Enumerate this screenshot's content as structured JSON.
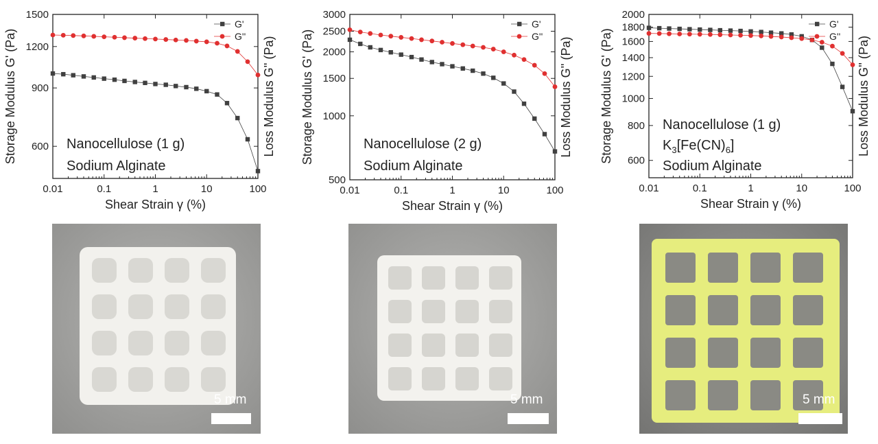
{
  "chart_data": [
    {
      "type": "scatter",
      "xlabel": "Shear Strain γ (%)",
      "ylabel_left": "Storage Modulus G' (Pa)",
      "ylabel_right": "Loss Modulus G'' (Pa)",
      "xscale": "log",
      "yscale": "log",
      "xlim": [
        0.01,
        100
      ],
      "ylim": [
        480,
        1500
      ],
      "xticks": [
        0.01,
        0.1,
        1,
        10,
        100
      ],
      "xtick_labels": [
        "0.01",
        "0.1",
        "1",
        "10",
        "100"
      ],
      "yticks": [
        600,
        900,
        1200,
        1500
      ],
      "ytick_labels": [
        "600",
        "900",
        "1200",
        "1500"
      ],
      "legend_position": "top-right",
      "annotation_lines": [
        "Nanocellulose (1 g)",
        "Sodium Alginate"
      ],
      "series": [
        {
          "name": "G'",
          "marker": "square",
          "color": "#404040",
          "x": [
            0.01,
            0.016,
            0.025,
            0.04,
            0.063,
            0.1,
            0.16,
            0.25,
            0.4,
            0.63,
            1,
            1.6,
            2.5,
            4,
            6.3,
            10,
            16,
            25,
            40,
            63,
            100
          ],
          "y": [
            995,
            990,
            983,
            975,
            968,
            960,
            953,
            945,
            938,
            932,
            925,
            920,
            912,
            905,
            895,
            880,
            860,
            810,
            730,
            630,
            505
          ]
        },
        {
          "name": "G''",
          "marker": "circle",
          "color": "#e03030",
          "x": [
            0.01,
            0.016,
            0.025,
            0.04,
            0.063,
            0.1,
            0.16,
            0.25,
            0.4,
            0.63,
            1,
            1.6,
            2.5,
            4,
            6.3,
            10,
            16,
            25,
            40,
            63,
            100
          ],
          "y": [
            1300,
            1298,
            1295,
            1292,
            1288,
            1284,
            1280,
            1276,
            1272,
            1268,
            1264,
            1260,
            1256,
            1252,
            1246,
            1240,
            1228,
            1205,
            1160,
            1080,
            985
          ]
        }
      ]
    },
    {
      "type": "scatter",
      "xlabel": "Shear Strain γ (%)",
      "ylabel_left": "Storage Modulus G' (Pa)",
      "ylabel_right": "Loss Modulus G'' (Pa)",
      "xscale": "log",
      "yscale": "log",
      "xlim": [
        0.01,
        100
      ],
      "ylim": [
        500,
        3000
      ],
      "xticks": [
        0.01,
        0.1,
        1,
        10,
        100
      ],
      "xtick_labels": [
        "0.01",
        "0.1",
        "1",
        "10",
        "100"
      ],
      "yticks": [
        500,
        1000,
        1500,
        2000,
        2500,
        3000
      ],
      "ytick_labels": [
        "500",
        "1000",
        "1500",
        "2000",
        "2500",
        "3000"
      ],
      "legend_position": "top-right",
      "annotation_lines": [
        "Nanocellulose (2 g)",
        "Sodium Alginate"
      ],
      "series": [
        {
          "name": "G'",
          "marker": "square",
          "color": "#404040",
          "x": [
            0.01,
            0.016,
            0.025,
            0.04,
            0.063,
            0.1,
            0.16,
            0.25,
            0.4,
            0.63,
            1,
            1.6,
            2.5,
            4,
            6.3,
            10,
            16,
            25,
            40,
            63,
            100
          ],
          "y": [
            2280,
            2180,
            2100,
            2040,
            1990,
            1940,
            1890,
            1840,
            1790,
            1750,
            1710,
            1670,
            1630,
            1580,
            1510,
            1420,
            1300,
            1140,
            970,
            820,
            680
          ]
        },
        {
          "name": "G''",
          "marker": "circle",
          "color": "#e03030",
          "x": [
            0.01,
            0.016,
            0.025,
            0.04,
            0.063,
            0.1,
            0.16,
            0.25,
            0.4,
            0.63,
            1,
            1.6,
            2.5,
            4,
            6.3,
            10,
            16,
            25,
            40,
            63,
            100
          ],
          "y": [
            2540,
            2480,
            2440,
            2400,
            2370,
            2340,
            2310,
            2280,
            2250,
            2220,
            2190,
            2160,
            2130,
            2100,
            2060,
            2000,
            1930,
            1840,
            1730,
            1580,
            1370
          ]
        }
      ]
    },
    {
      "type": "scatter",
      "xlabel": "Shear Strain γ (%)",
      "ylabel_left": "Storage Modulus G' (Pa)",
      "ylabel_right": "Loss Modulus G'' (Pa)",
      "xscale": "log",
      "yscale": "log",
      "xlim": [
        0.01,
        100
      ],
      "ylim": [
        520,
        2000
      ],
      "xticks": [
        0.01,
        0.1,
        1,
        10,
        100
      ],
      "xtick_labels": [
        "0.01",
        "0.1",
        "1",
        "10",
        "100"
      ],
      "yticks": [
        600,
        800,
        1000,
        1200,
        1400,
        1600,
        1800,
        2000
      ],
      "ytick_labels": [
        "600",
        "800",
        "1000",
        "1200",
        "1400",
        "1600",
        "1800",
        "2000"
      ],
      "legend_position": "top-right",
      "annotation_lines": [
        "Nanocellulose (1 g)",
        "K3[Fe(CN)6]",
        "Sodium Alginate"
      ],
      "annotation_formula": {
        "a": "K",
        "sub1": "3",
        "b": "[Fe(CN)",
        "sub2": "6",
        "c": "]"
      },
      "series": [
        {
          "name": "G'",
          "marker": "square",
          "color": "#404040",
          "x": [
            0.01,
            0.016,
            0.025,
            0.04,
            0.063,
            0.1,
            0.16,
            0.25,
            0.4,
            0.63,
            1,
            1.6,
            2.5,
            4,
            6.3,
            10,
            16,
            25,
            40,
            63,
            100
          ],
          "y": [
            1790,
            1785,
            1780,
            1775,
            1770,
            1765,
            1760,
            1755,
            1750,
            1745,
            1738,
            1730,
            1720,
            1710,
            1695,
            1670,
            1620,
            1520,
            1330,
            1100,
            900
          ]
        },
        {
          "name": "G''",
          "marker": "circle",
          "color": "#e03030",
          "x": [
            0.01,
            0.016,
            0.025,
            0.04,
            0.063,
            0.1,
            0.16,
            0.25,
            0.4,
            0.63,
            1,
            1.6,
            2.5,
            4,
            6.3,
            10,
            16,
            25,
            40,
            63,
            100
          ],
          "y": [
            1710,
            1708,
            1705,
            1702,
            1700,
            1698,
            1695,
            1692,
            1688,
            1684,
            1680,
            1675,
            1668,
            1660,
            1650,
            1638,
            1620,
            1590,
            1540,
            1450,
            1320
          ]
        }
      ]
    }
  ],
  "photos": [
    {
      "scale_label": "5 mm",
      "color": "#f2f1ed"
    },
    {
      "scale_label": "5 mm",
      "color": "#f3f2ee"
    },
    {
      "scale_label": "5 mm",
      "color": "#e6ed7e"
    }
  ]
}
